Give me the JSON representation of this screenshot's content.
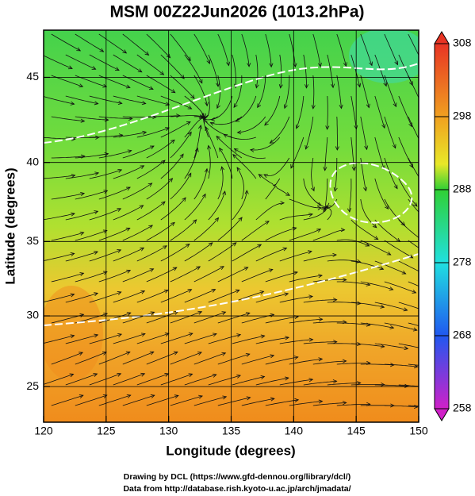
{
  "chart_data": {
    "type": "map",
    "title": "MSM 00Z22Jun2026 (1013.2hPa)",
    "x_label": "Longitude (degrees)",
    "y_label": "Latitude (degrees)",
    "xlim": [
      120,
      150
    ],
    "ylim": [
      22.4,
      47.6
    ],
    "xticks": [
      120,
      125,
      130,
      135,
      140,
      145,
      150
    ],
    "yticks": [
      25,
      30,
      35,
      40,
      45
    ],
    "projection": "mercator",
    "grid": true,
    "colorbar": {
      "lim": [
        258,
        308
      ],
      "ticks": [
        258,
        268,
        278,
        288,
        298,
        308
      ]
    },
    "credits": [
      "Drawing by DCL (https://www.gfd-dennou.org/library/dcl/)",
      "Data from http://database.rish.kyoto-u.ac.jp/arch/jmadata/"
    ]
  }
}
